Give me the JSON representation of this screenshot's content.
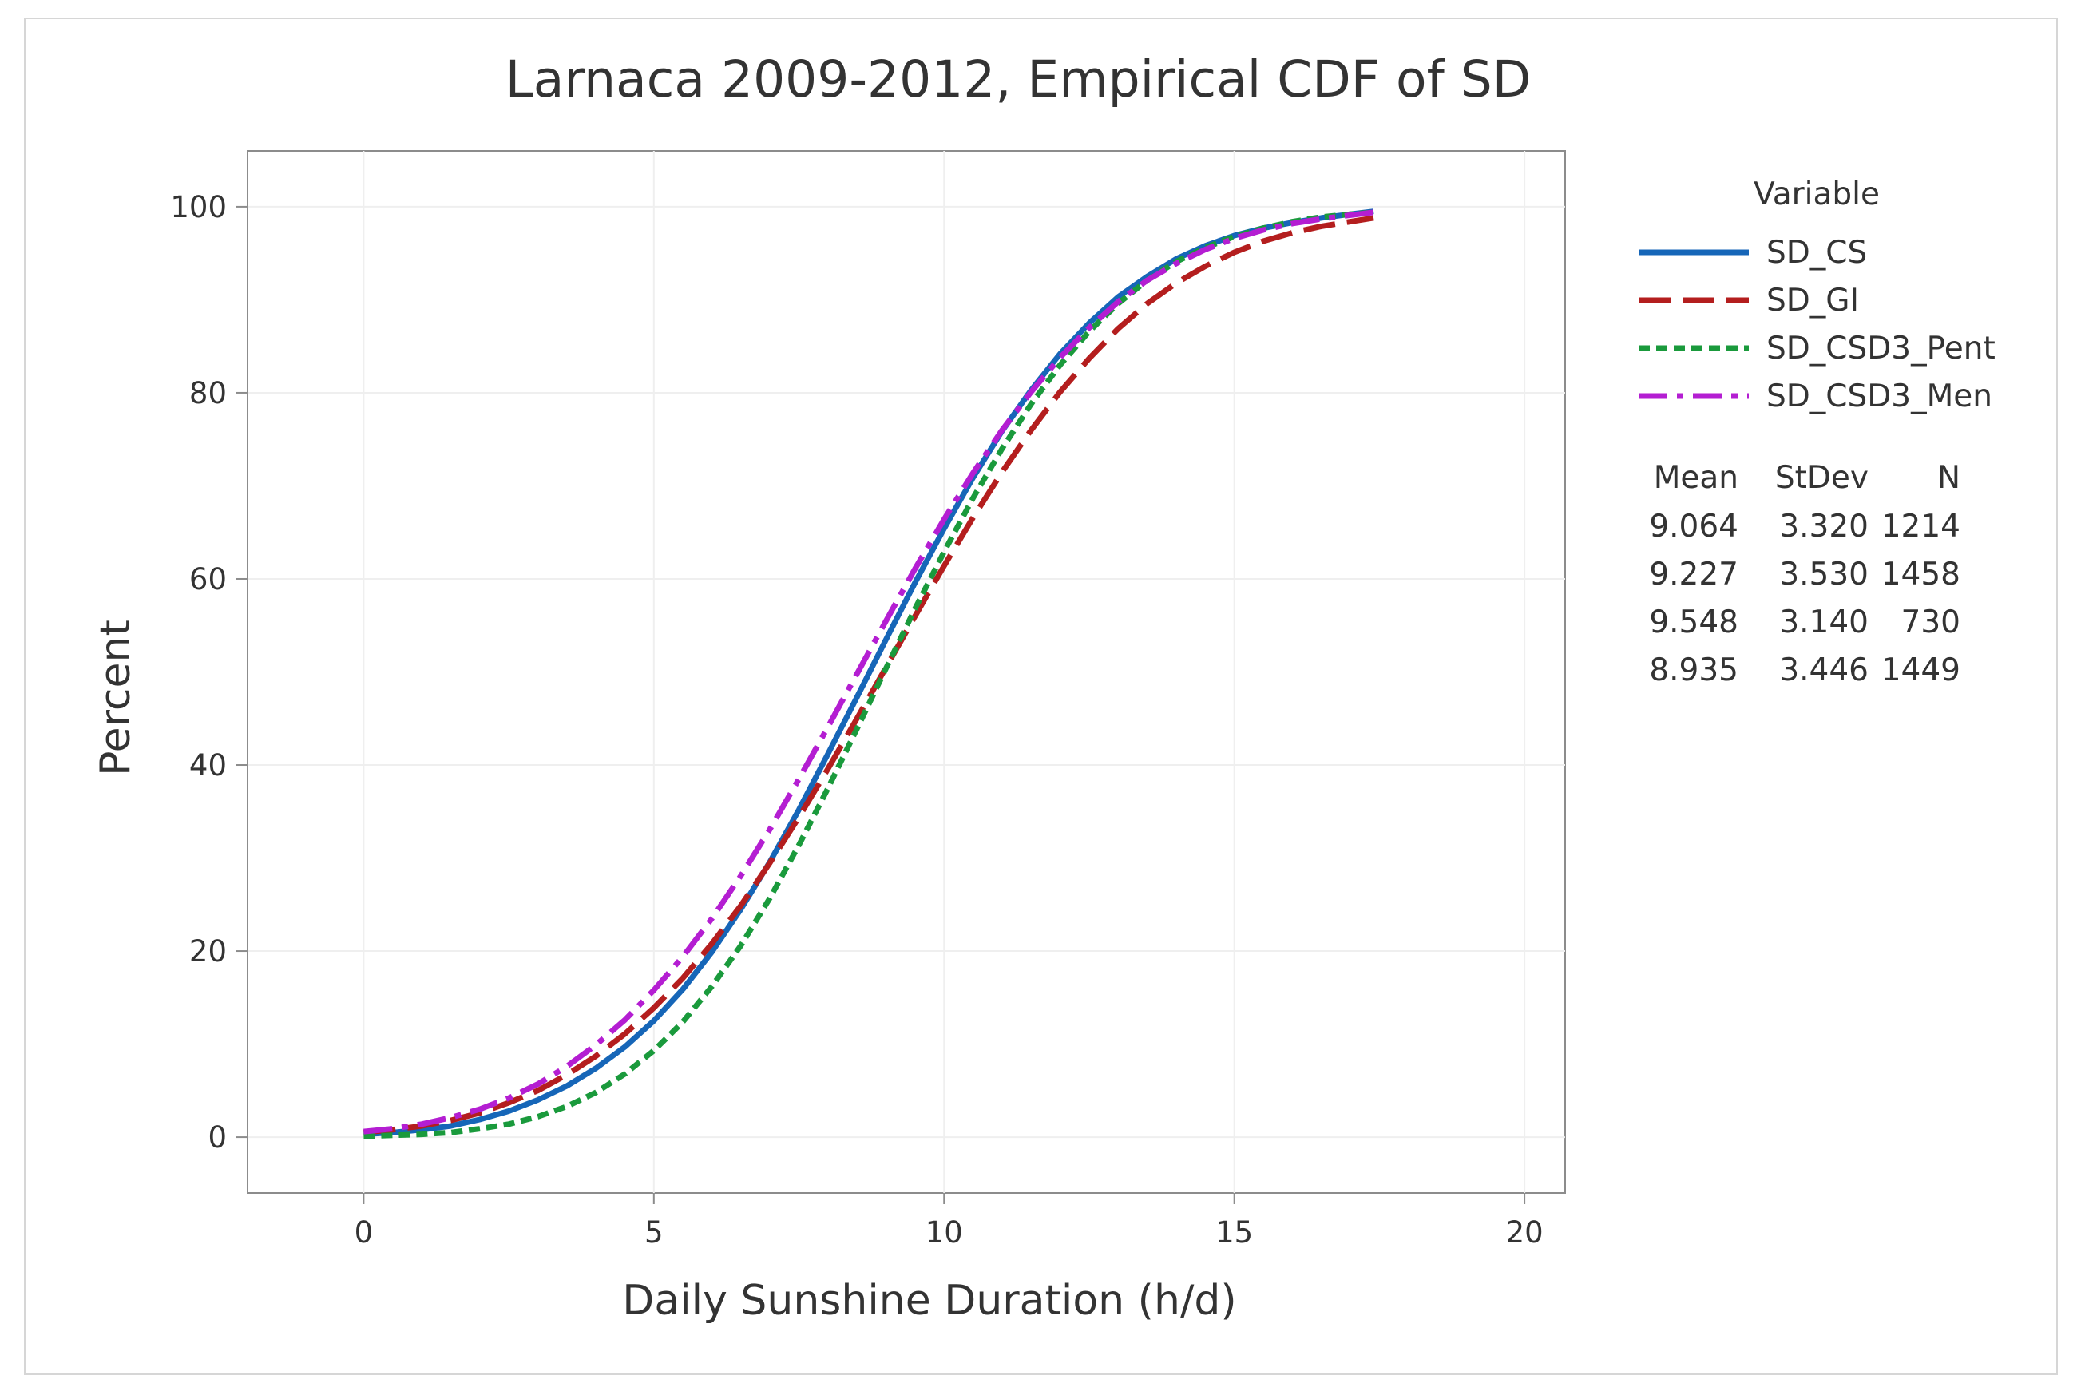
{
  "chart_data": {
    "type": "line",
    "title": "Larnaca 2009-2012, Empirical CDF of SD",
    "xlabel": "Daily Sunshine Duration (h/d)",
    "ylabel": "Percent",
    "xlim": [
      -2,
      20.7
    ],
    "ylim": [
      -6,
      106
    ],
    "xticks": [
      0,
      5,
      10,
      15,
      20
    ],
    "yticks": [
      0,
      20,
      40,
      60,
      80,
      100
    ],
    "grid": true,
    "legend_title": "Variable",
    "legend_position": "right",
    "x": [
      0.0,
      0.5,
      1.0,
      1.5,
      2.0,
      2.5,
      3.0,
      3.5,
      4.0,
      4.5,
      5.0,
      5.5,
      6.0,
      6.5,
      7.0,
      7.5,
      8.0,
      8.5,
      9.0,
      9.5,
      10.0,
      10.5,
      11.0,
      11.5,
      12.0,
      12.5,
      13.0,
      13.5,
      14.0,
      14.5,
      15.0,
      15.5,
      16.0,
      16.5,
      17.0,
      17.4
    ],
    "series": [
      {
        "name": "SD_CS",
        "color": "#1666b8",
        "dash": "solid",
        "values": [
          0.3,
          0.5,
          0.8,
          1.2,
          1.9,
          2.8,
          4.0,
          5.5,
          7.4,
          9.7,
          12.5,
          15.9,
          19.9,
          24.5,
          29.6,
          35.2,
          41.2,
          47.3,
          53.5,
          59.6,
          65.4,
          70.9,
          75.9,
          80.3,
          84.2,
          87.5,
          90.3,
          92.5,
          94.4,
          95.8,
          96.9,
          97.7,
          98.3,
          98.8,
          99.2,
          99.5
        ]
      },
      {
        "name": "SD_GI",
        "color": "#b41e1e",
        "dash": "long-dash",
        "values": [
          0.5,
          0.8,
          1.2,
          1.8,
          2.6,
          3.7,
          5.0,
          6.7,
          8.7,
          11.1,
          13.9,
          17.1,
          20.8,
          24.9,
          29.5,
          34.4,
          39.6,
          45.0,
          50.5,
          56.0,
          61.4,
          66.6,
          71.5,
          76.0,
          80.1,
          83.7,
          86.9,
          89.6,
          91.8,
          93.6,
          95.1,
          96.3,
          97.2,
          97.9,
          98.4,
          98.8
        ]
      },
      {
        "name": "SD_CSD3_Pent",
        "color": "#1a9a3c",
        "dash": "short-dash",
        "values": [
          0.1,
          0.2,
          0.3,
          0.5,
          0.9,
          1.4,
          2.2,
          3.3,
          4.8,
          6.8,
          9.3,
          12.4,
          16.2,
          20.6,
          25.7,
          31.4,
          37.5,
          43.9,
          50.4,
          56.8,
          62.9,
          68.7,
          74.0,
          78.8,
          83.0,
          86.6,
          89.6,
          92.1,
          94.1,
          95.6,
          96.8,
          97.7,
          98.4,
          98.9,
          99.2,
          99.4
        ]
      },
      {
        "name": "SD_CSD3_Men",
        "color": "#b41ed2",
        "dash": "dash-dot",
        "values": [
          0.6,
          0.9,
          1.4,
          2.1,
          3.0,
          4.2,
          5.7,
          7.6,
          9.9,
          12.6,
          15.8,
          19.4,
          23.5,
          28.1,
          33.1,
          38.5,
          44.1,
          49.8,
          55.5,
          61.1,
          66.4,
          71.4,
          76.0,
          80.1,
          83.8,
          87.0,
          89.8,
          92.1,
          93.9,
          95.4,
          96.6,
          97.5,
          98.2,
          98.7,
          99.1,
          99.4
        ]
      }
    ],
    "stats_table": {
      "headers": [
        "Mean",
        "StDev",
        "N"
      ],
      "rows": [
        [
          "9.064",
          "3.320",
          "1214"
        ],
        [
          "9.227",
          "3.530",
          "1458"
        ],
        [
          "9.548",
          "3.140",
          "730"
        ],
        [
          "8.935",
          "3.446",
          "1449"
        ]
      ]
    }
  }
}
